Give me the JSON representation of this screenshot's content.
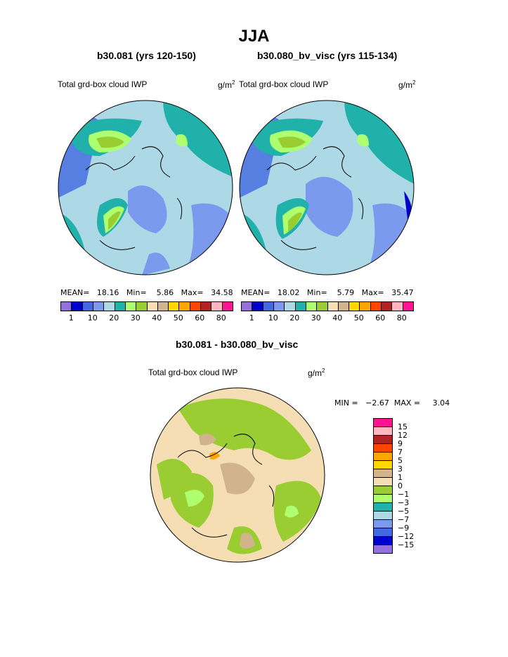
{
  "title": "JJA",
  "panels": [
    {
      "subtitle": "b30.081 (yrs 120-150)",
      "field": "Total grd-box cloud IWP",
      "units_base": "g/m",
      "units_exp": "2",
      "mean_label": "MEAN=",
      "mean": "18.16",
      "min_label": "Min=",
      "min": "5.86",
      "max_label": "Max=",
      "max": "34.58"
    },
    {
      "subtitle": "b30.080_bv_visc (yrs 115-134)",
      "field": "Total grd-box cloud IWP",
      "units_base": "g/m",
      "units_exp": "2",
      "mean_label": "MEAN=",
      "mean": "18.02",
      "min_label": "Min=",
      "min": "5.79",
      "max_label": "Max=",
      "max": "35.47"
    }
  ],
  "diff": {
    "subtitle": "b30.081 - b30.080_bv_visc",
    "field": "Total grd-box cloud IWP",
    "units_base": "g/m",
    "units_exp": "2",
    "minmax": "MIN =   −2.67  MAX =     3.04"
  },
  "colorbar": {
    "colors": [
      "#9370DB",
      "#0000CD",
      "#4169E1",
      "#7B9AEE",
      "#ADD8E6",
      "#20B2AA",
      "#ADFF6F",
      "#9ACD32",
      "#F5DEB3",
      "#D2B48C",
      "#FFD700",
      "#FFA500",
      "#FF4500",
      "#B22222",
      "#FFB6C1",
      "#FF1493"
    ],
    "tick_labels": [
      "1",
      "10",
      "20",
      "30",
      "40",
      "50",
      "60",
      "80"
    ]
  },
  "diff_colorbar": {
    "colors": [
      "#FF1493",
      "#FFB6C1",
      "#B22222",
      "#FF4500",
      "#FFA500",
      "#FFD700",
      "#D2B48C",
      "#F5DEB3",
      "#9ACD32",
      "#ADFF6F",
      "#20B2AA",
      "#ADD8E6",
      "#7B9AEE",
      "#4169E1",
      "#0000CD",
      "#9370DB"
    ],
    "labels": [
      "15",
      "12",
      "9",
      "7",
      "5",
      "3",
      "1",
      "0",
      "−1",
      "−3",
      "−5",
      "−7",
      "−9",
      "−12",
      "−15"
    ]
  }
}
